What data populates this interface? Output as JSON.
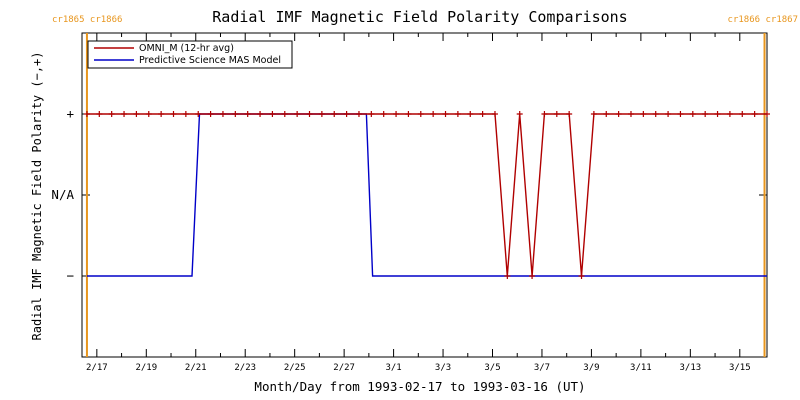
{
  "chart_data": {
    "type": "line",
    "title": "Radial IMF Magnetic Field Polarity Comparisons",
    "xlabel": "Month/Day from 1993-02-17 to 1993-03-16 (UT)",
    "ylabel": "Radial IMF Magnetic Field Polarity (−,+)",
    "x_unit": "days",
    "xlim": [
      -0.6,
      27.1
    ],
    "ylim": [
      -2,
      2
    ],
    "x_ticks": [
      {
        "x": 0,
        "label": "2/17"
      },
      {
        "x": 2,
        "label": "2/19"
      },
      {
        "x": 4,
        "label": "2/21"
      },
      {
        "x": 6,
        "label": "2/23"
      },
      {
        "x": 8,
        "label": "2/25"
      },
      {
        "x": 10,
        "label": "2/27"
      },
      {
        "x": 12,
        "label": "3/1"
      },
      {
        "x": 14,
        "label": "3/3"
      },
      {
        "x": 16,
        "label": "3/5"
      },
      {
        "x": 18,
        "label": "3/7"
      },
      {
        "x": 20,
        "label": "3/9"
      },
      {
        "x": 22,
        "label": "3/11"
      },
      {
        "x": 24,
        "label": "3/13"
      },
      {
        "x": 26,
        "label": "3/15"
      }
    ],
    "y_ticks": [
      {
        "y": 1,
        "label": "+"
      },
      {
        "y": 0,
        "label": "N/A"
      },
      {
        "y": -1,
        "label": "−"
      }
    ],
    "legend_position": "top-left",
    "series": [
      {
        "name": "OMNI_M (12-hr avg)",
        "color": "#b00000",
        "marker": "plus",
        "points": [
          [
            -0.4,
            1
          ],
          [
            0.1,
            1
          ],
          [
            0.6,
            1
          ],
          [
            1.1,
            1
          ],
          [
            1.6,
            1
          ],
          [
            2.1,
            1
          ],
          [
            2.6,
            1
          ],
          [
            3.1,
            1
          ],
          [
            3.6,
            1
          ],
          [
            4.1,
            1
          ],
          [
            4.6,
            1
          ],
          [
            5.1,
            1
          ],
          [
            5.6,
            1
          ],
          [
            6.1,
            1
          ],
          [
            6.6,
            1
          ],
          [
            7.1,
            1
          ],
          [
            7.6,
            1
          ],
          [
            8.1,
            1
          ],
          [
            8.6,
            1
          ],
          [
            9.1,
            1
          ],
          [
            9.6,
            1
          ],
          [
            10.1,
            1
          ],
          [
            10.6,
            1
          ],
          [
            11.1,
            1
          ],
          [
            11.6,
            1
          ],
          [
            12.1,
            1
          ],
          [
            12.6,
            1
          ],
          [
            13.1,
            1
          ],
          [
            13.6,
            1
          ],
          [
            14.1,
            1
          ],
          [
            14.6,
            1
          ],
          [
            15.1,
            1
          ],
          [
            15.6,
            1
          ],
          [
            16.1,
            1
          ],
          [
            16.6,
            -1
          ],
          [
            17.1,
            1
          ],
          [
            17.6,
            -1
          ],
          [
            18.1,
            1
          ],
          [
            18.6,
            1
          ],
          [
            19.1,
            1
          ],
          [
            19.6,
            -1
          ],
          [
            20.1,
            1
          ],
          [
            20.6,
            1
          ],
          [
            21.1,
            1
          ],
          [
            21.6,
            1
          ],
          [
            22.1,
            1
          ],
          [
            22.6,
            1
          ],
          [
            23.1,
            1
          ],
          [
            23.6,
            1
          ],
          [
            24.1,
            1
          ],
          [
            24.6,
            1
          ],
          [
            25.1,
            1
          ],
          [
            25.6,
            1
          ],
          [
            26.1,
            1
          ],
          [
            26.6,
            1
          ],
          [
            27.1,
            1
          ]
        ]
      },
      {
        "name": "Predictive Science MAS Model",
        "color": "#0000c8",
        "marker": "none",
        "points": [
          [
            -0.4,
            -1
          ],
          [
            3.85,
            -1
          ],
          [
            4.15,
            1
          ],
          [
            10.9,
            1
          ],
          [
            11.15,
            -1
          ],
          [
            27.1,
            -1
          ]
        ]
      }
    ],
    "vertical_markers": [
      {
        "x": -0.4,
        "color": "#e8961e",
        "label": "cr1865 cr1866"
      },
      {
        "x": 27.0,
        "color": "#e8961e",
        "label": "cr1866 cr1867"
      }
    ]
  }
}
